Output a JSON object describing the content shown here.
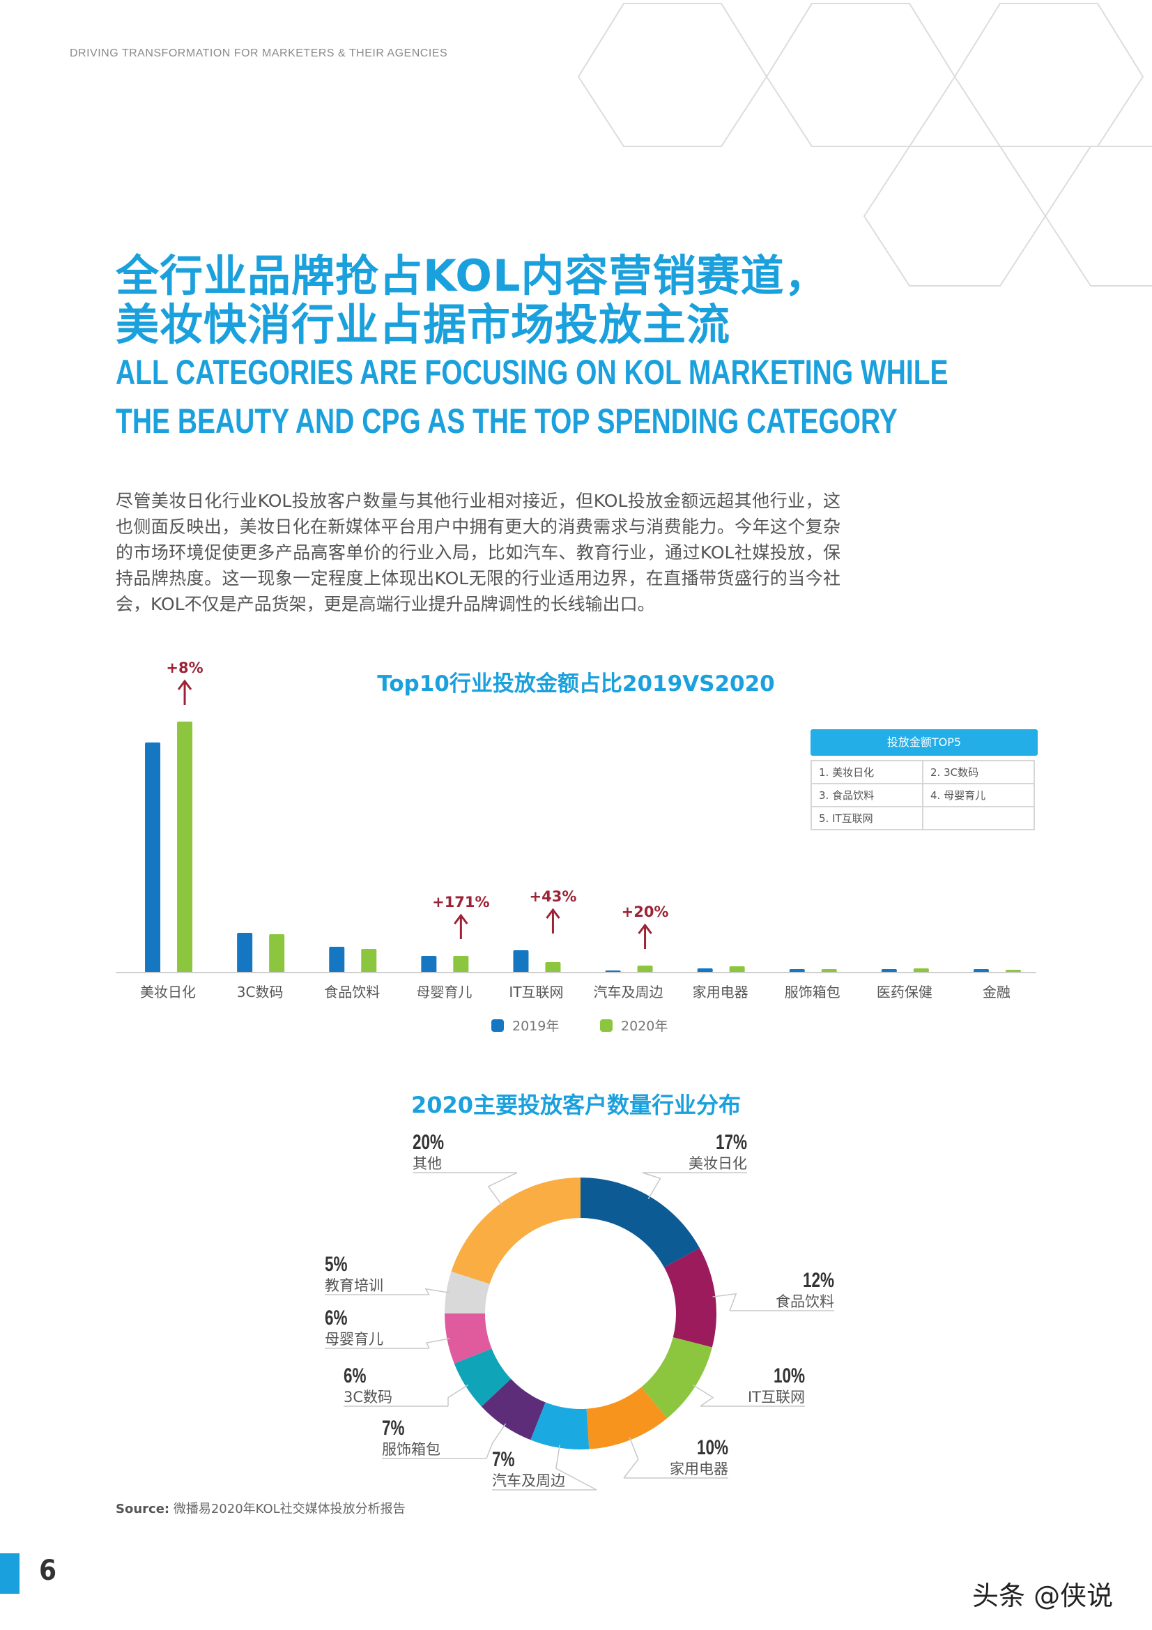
{
  "header": {
    "tagline": "DRIVING TRANSFORMATION FOR MARKETERS & THEIR AGENCIES"
  },
  "title": {
    "cn_line1": "全行业品牌抢占KOL内容营销赛道，",
    "cn_line2": "美妆快消行业占据市场投放主流",
    "en_line1": "ALL CATEGORIES ARE FOCUSING ON KOL MARKETING WHILE",
    "en_line2": "THE BEAUTY AND CPG AS THE TOP SPENDING CATEGORY"
  },
  "body_text": "尽管美妆日化行业KOL投放客户数量与其他行业相对接近，但KOL投放金额远超其他行业，这也侧面反映出，美妆日化在新媒体平台用户中拥有更大的消费需求与消费能力。今年这个复杂的市场环境促使更多产品高客单价的行业入局，比如汽车、教育行业，通过KOL社媒投放，保持品牌热度。这一现象一定程度上体现出KOL无限的行业适用边界，在直播带货盛行的当今社会，KOL不仅是产品货架，更是高端行业提升品牌调性的长线输出口。",
  "top5": {
    "title": "投放金额TOP5",
    "items": [
      "1. 美妆日化",
      "2. 3C数码",
      "3. 食品饮料",
      "4. 母婴育儿",
      "5. IT互联网",
      ""
    ]
  },
  "colors": {
    "accent": "#1aa0dc",
    "y2019": "#1576c2",
    "y2020": "#8cc63f",
    "annotation": "#9b2335"
  },
  "chart_data": [
    {
      "type": "bar",
      "title": "Top10行业投放金额占比2019VS2020",
      "categories": [
        "美妆日化",
        "3C数码",
        "食品饮料",
        "母婴育儿",
        "IT互联网",
        "汽车及周边",
        "家用电器",
        "服饰箱包",
        "医药保健",
        "金融"
      ],
      "series": [
        {
          "name": "2019年",
          "color": "#1576c2",
          "values": [
            33,
            5.7,
            3.7,
            2.4,
            3.2,
            0.3,
            0.6,
            0.5,
            0.5,
            0.5
          ]
        },
        {
          "name": "2020年",
          "color": "#8cc63f",
          "values": [
            36,
            5.5,
            3.4,
            2.4,
            1.5,
            1.0,
            0.9,
            0.5,
            0.6,
            0.4
          ]
        }
      ],
      "annotations": [
        {
          "category": "美妆日化",
          "text": "+8%"
        },
        {
          "category": "母婴育儿",
          "text": "+171%"
        },
        {
          "category": "IT互联网",
          "text": "+43%"
        },
        {
          "category": "汽车及周边",
          "text": "+20%"
        }
      ],
      "ylim": [
        0,
        36
      ],
      "grid": false,
      "legend": "bottom"
    },
    {
      "type": "pie",
      "title": "2020主要投放客户数量行业分布",
      "donut": true,
      "slices": [
        {
          "label": "美妆日化",
          "value": 17,
          "display": "17%",
          "color": "#0d5b95"
        },
        {
          "label": "食品饮料",
          "value": 12,
          "display": "12%",
          "color": "#9b1b5c"
        },
        {
          "label": "IT互联网",
          "value": 10,
          "display": "10%",
          "color": "#8cc63f"
        },
        {
          "label": "家用电器",
          "value": 10,
          "display": "10%",
          "color": "#f7941d"
        },
        {
          "label": "汽车及周边",
          "value": 7,
          "display": "7%",
          "color": "#1ba9e1"
        },
        {
          "label": "服饰箱包",
          "value": 7,
          "display": "7%",
          "color": "#5d2d7a"
        },
        {
          "label": "3C数码",
          "value": 6,
          "display": "6%",
          "color": "#0fa4b7"
        },
        {
          "label": "母婴育儿",
          "value": 6,
          "display": "6%",
          "color": "#e05a9e"
        },
        {
          "label": "教育培训",
          "value": 5,
          "display": "5%",
          "color": "#d9d9d9"
        },
        {
          "label": "其他",
          "value": 20,
          "display": "20%",
          "color": "#f9ad42"
        }
      ]
    }
  ],
  "source": {
    "label": "Source:",
    "text": "微播易2020年KOL社交媒体投放分析报告"
  },
  "page_number": "6",
  "watermark": "头条 @侠说"
}
